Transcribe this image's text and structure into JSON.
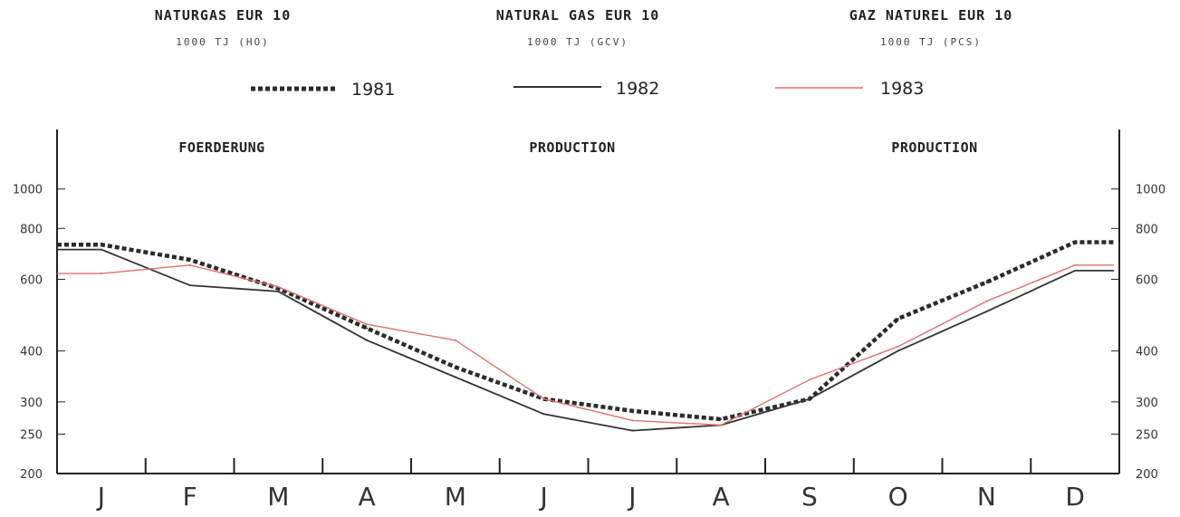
{
  "headers": [
    {
      "title": "NATURGAS   EUR 10",
      "unit": "1000 TJ (HO)"
    },
    {
      "title": "NATURAL GAS   EUR 10",
      "unit": "1000 TJ (GCV)"
    },
    {
      "title": "GAZ NATUREL   EUR 10",
      "unit": "1000 TJ (PCS)"
    }
  ],
  "sections": [
    "FOERDERUNG",
    "PRODUCTION",
    "PRODUCTION"
  ],
  "colors": {
    "s1981": "#2b2b2b",
    "s1982": "#333333",
    "s1983": "#e07070",
    "axis": "#222222"
  },
  "chart_data": {
    "type": "line",
    "x_type": "category",
    "categories": [
      "J",
      "F",
      "M",
      "A",
      "M",
      "J",
      "J",
      "A",
      "S",
      "O",
      "N",
      "D"
    ],
    "y_scale": "log",
    "ylim": [
      200,
      1400
    ],
    "y_ticks": [
      200,
      250,
      300,
      400,
      600,
      800,
      1000
    ],
    "series": [
      {
        "name": "1981",
        "style": "dotted",
        "values": [
          730,
          670,
          570,
          455,
          365,
          305,
          285,
          272,
          305,
          480,
          590,
          740
        ]
      },
      {
        "name": "1982",
        "style": "solid",
        "values": [
          710,
          580,
          560,
          425,
          345,
          280,
          255,
          263,
          305,
          400,
          500,
          630
        ]
      },
      {
        "name": "1983",
        "style": "solid",
        "values": [
          620,
          650,
          575,
          465,
          425,
          305,
          270,
          263,
          340,
          410,
          530,
          650
        ]
      }
    ]
  }
}
